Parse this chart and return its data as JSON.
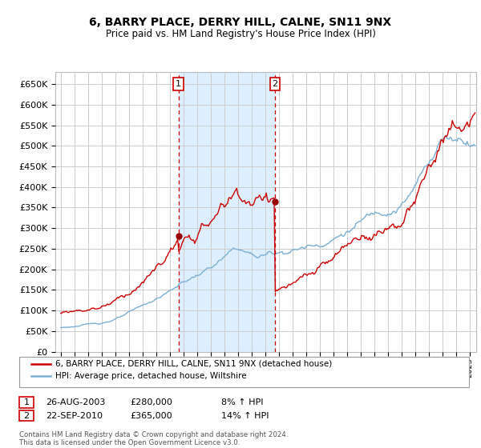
{
  "title": "6, BARRY PLACE, DERRY HILL, CALNE, SN11 9NX",
  "subtitle": "Price paid vs. HM Land Registry's House Price Index (HPI)",
  "ylim": [
    0,
    680000
  ],
  "yticks": [
    0,
    50000,
    100000,
    150000,
    200000,
    250000,
    300000,
    350000,
    400000,
    450000,
    500000,
    550000,
    600000,
    650000
  ],
  "ytick_labels": [
    "£0",
    "£50K",
    "£100K",
    "£150K",
    "£200K",
    "£250K",
    "£300K",
    "£350K",
    "£400K",
    "£450K",
    "£500K",
    "£550K",
    "£600K",
    "£650K"
  ],
  "sale1_date": "26-AUG-2003",
  "sale1_price": 280000,
  "sale1_pct": "8%",
  "sale2_date": "22-SEP-2010",
  "sale2_price": 365000,
  "sale2_pct": "14%",
  "sale1_x": 2003.65,
  "sale2_x": 2010.72,
  "legend_property": "6, BARRY PLACE, DERRY HILL, CALNE, SN11 9NX (detached house)",
  "legend_hpi": "HPI: Average price, detached house, Wiltshire",
  "footnote": "Contains HM Land Registry data © Crown copyright and database right 2024.\nThis data is licensed under the Open Government Licence v3.0.",
  "line_color_red": "#cc0000",
  "line_color_blue": "#7ab0d4",
  "shade_color": "#ddeeff",
  "grid_color": "#cccccc",
  "marker_color": "#990000"
}
